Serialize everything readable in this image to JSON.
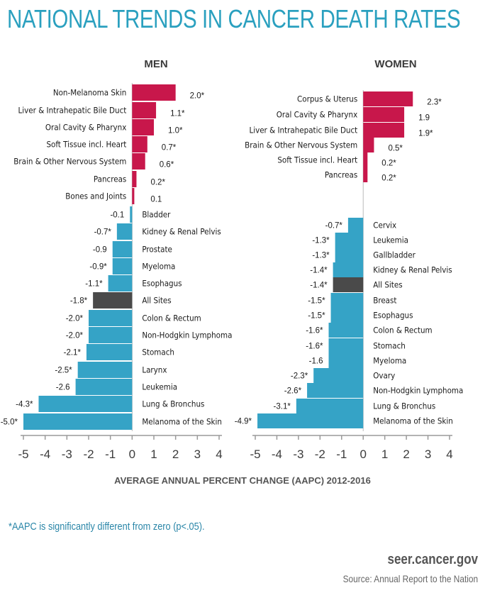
{
  "title": "NATIONAL TRENDS IN CANCER DEATH RATES",
  "xlabel": "AVERAGE ANNUAL PERCENT CHANGE (AAPC) 2012-2016",
  "footnote": "*AAPC is significantly different from zero (p<.05).",
  "site": "seer.cancer.gov",
  "source": "Source: Annual Report to the Nation",
  "colors": {
    "positive": "#c8174b",
    "negative": "#35a3c6",
    "all_sites": "#4a4a4a",
    "title": "#2aa0bf"
  },
  "chart_data": [
    {
      "type": "bar",
      "orientation": "horizontal",
      "title": "MEN",
      "xlim": [
        -5,
        4
      ],
      "ticks": [
        "-5",
        "-4",
        "-3",
        "-2",
        "-1",
        "0",
        "1",
        "2",
        "3",
        "4"
      ],
      "categories": [
        "Non-Melanoma Skin",
        "Liver & Intrahepatic Bile Duct",
        "Oral Cavity & Pharynx",
        "Soft Tissue incl. Heart",
        "Brain & Other Nervous System",
        "Pancreas",
        "Bones and Joints",
        "Bladder",
        "Kidney & Renal Pelvis",
        "Prostate",
        "Myeloma",
        "Esophagus",
        "All Sites",
        "Colon & Rectum",
        "Non-Hodgkin Lymphoma",
        "Stomach",
        "Larynx",
        "Leukemia",
        "Lung & Bronchus",
        "Melanoma of the Skin"
      ],
      "values": [
        2.0,
        1.1,
        1.0,
        0.7,
        0.6,
        0.2,
        0.1,
        -0.1,
        -0.7,
        -0.9,
        -0.9,
        -1.1,
        -1.8,
        -2.0,
        -2.0,
        -2.1,
        -2.5,
        -2.6,
        -4.3,
        -5.0
      ],
      "labels": [
        "2.0*",
        "1.1*",
        "1.0*",
        "0.7*",
        "0.6*",
        "0.2*",
        "0.1",
        "-0.1",
        "-0.7*",
        "-0.9",
        "-0.9*",
        "-1.1*",
        "-1.8*",
        "-2.0*",
        "-2.0*",
        "-2.1*",
        "-2.5*",
        "-2.6",
        "-4.3*",
        "-5.0*"
      ]
    },
    {
      "type": "bar",
      "orientation": "horizontal",
      "title": "WOMEN",
      "xlim": [
        -5,
        4
      ],
      "ticks": [
        "-5",
        "-4",
        "-3",
        "-2",
        "-1",
        "0",
        "1",
        "2",
        "3",
        "4"
      ],
      "categories": [
        "Corpus & Uterus",
        "Oral Cavity & Pharynx",
        "Liver & Intrahepatic Bile Duct",
        "Brain & Other Nervous System",
        "Soft Tissue incl. Heart",
        "Pancreas",
        "Cervix",
        "Leukemia",
        "Gallbladder",
        "Kidney & Renal Pelvis",
        "All Sites",
        "Breast",
        "Esophagus",
        "Colon & Rectum",
        "Stomach",
        "Myeloma",
        "Ovary",
        "Non-Hodgkin Lymphoma",
        "Lung & Bronchus",
        "Melanoma of the Skin"
      ],
      "values": [
        2.3,
        1.9,
        1.9,
        0.5,
        0.2,
        0.2,
        -0.7,
        -1.3,
        -1.3,
        -1.4,
        -1.4,
        -1.5,
        -1.5,
        -1.6,
        -1.6,
        -1.6,
        -2.3,
        -2.6,
        -3.1,
        -4.9
      ],
      "labels": [
        "2.3*",
        "1.9",
        "1.9*",
        "0.5*",
        "0.2*",
        "0.2*",
        "-0.7*",
        "-1.3*",
        "-1.3*",
        "-1.4*",
        "-1.4*",
        "-1.5*",
        "-1.5*",
        "-1.6*",
        "-1.6*",
        "-1.6",
        "-2.3*",
        "-2.6*",
        "-3.1*",
        "-4.9*"
      ]
    }
  ]
}
